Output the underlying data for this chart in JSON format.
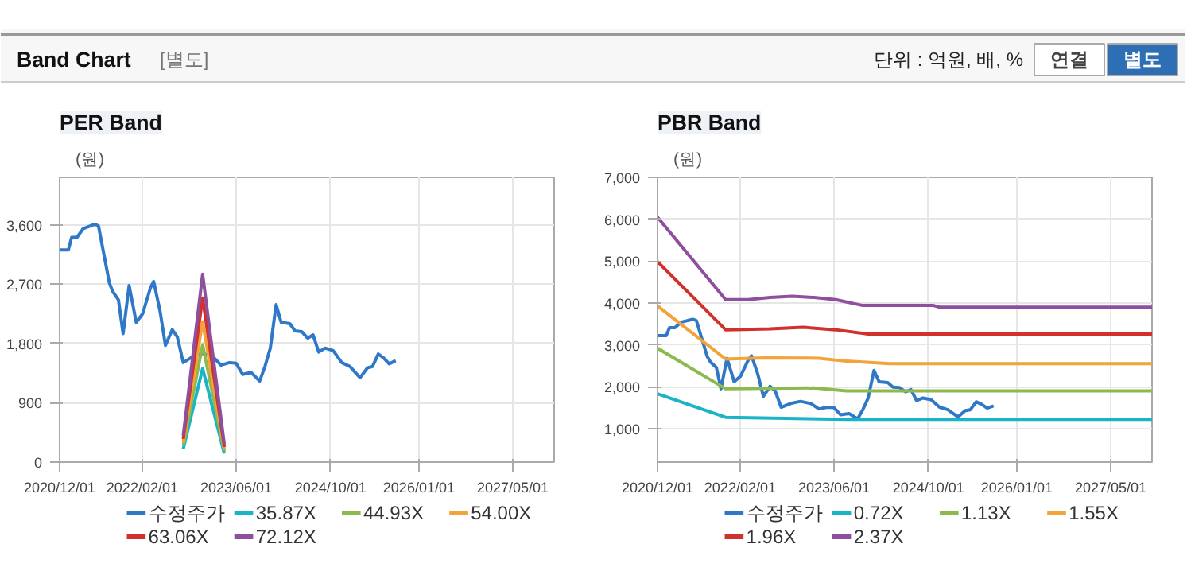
{
  "chart_data": [
    {
      "type": "other",
      "title": "Band Chart",
      "subtitle": "[별도]",
      "annotations": [
        "단위 : 억원, 배, %",
        "연결",
        "별도"
      ]
    },
    {
      "type": "line",
      "title": "PER Band",
      "ylabel": "(원)",
      "legend": "bottom",
      "grid": true,
      "x": [
        "2020-12-01",
        "2021-01-15",
        "2021-02-01",
        "2021-03-01",
        "2021-04-01",
        "2021-06-01",
        "2021-06-20",
        "2021-07-01",
        "2021-08-15",
        "2021-09-01",
        "2021-10-01",
        "2021-10-25",
        "2021-11-25",
        "2022-01-01",
        "2022-02-03",
        "2022-03-15",
        "2022-04-01",
        "2022-05-04",
        "2022-06-01",
        "2022-07-06",
        "2022-08-01",
        "2022-09-01",
        "2022-10-20",
        "2022-12-10",
        "2023-02-01",
        "2023-03-15",
        "2023-04-28",
        "2023-06-01",
        "2023-07-05",
        "2023-08-18",
        "2023-10-01",
        "2023-10-28",
        "2023-11-25",
        "2023-12-25",
        "2024-01-20",
        "2024-03-05",
        "2024-04-01",
        "2024-05-05",
        "2024-06-05",
        "2024-07-03",
        "2024-08-01",
        "2024-09-03",
        "2024-10-15",
        "2024-11-28",
        "2025-01-10",
        "2025-01-28",
        "2025-03-03",
        "2025-04-10",
        "2025-05-06",
        "2025-06-05",
        "2025-07-03",
        "2025-08-01",
        "2025-09-03"
      ],
      "xlim": [
        "2020-12-01",
        "2027-12-01"
      ],
      "xticks": [
        {
          "value": "2020-12-01",
          "label": "2020/12/01"
        },
        {
          "value": "2022-02-01",
          "label": "2022/02/01"
        },
        {
          "value": "2023-06-01",
          "label": "2023/06/01"
        },
        {
          "value": "2024-10-01",
          "label": "2024/10/01"
        },
        {
          "value": "2026-01-01",
          "label": "2026/01/01"
        },
        {
          "value": "2027-05-01",
          "label": "2027/05/01"
        }
      ],
      "ylim": [
        0,
        4320
      ],
      "yticks": [
        {
          "value": 0,
          "label": "0"
        },
        {
          "value": 900,
          "label": "900"
        },
        {
          "value": 1800,
          "label": "1,800"
        },
        {
          "value": 2700,
          "label": "2,700"
        },
        {
          "value": 3600,
          "label": "3,600"
        }
      ],
      "series": [
        {
          "name": "수정주가",
          "color": "#2f78c8",
          "values": [
            3220,
            3220,
            3410,
            3410,
            3540,
            3610,
            3580,
            3410,
            2720,
            2590,
            2460,
            1950,
            2680,
            2120,
            2250,
            2640,
            2740,
            2290,
            1770,
            2010,
            1900,
            1510,
            1600,
            1650,
            1600,
            1470,
            1510,
            1500,
            1330,
            1360,
            1230,
            1450,
            1730,
            2390,
            2120,
            2100,
            1990,
            1980,
            1880,
            1930,
            1670,
            1730,
            1690,
            1510,
            1450,
            1390,
            1280,
            1430,
            1450,
            1640,
            1580,
            1490,
            1540
          ]
        },
        {
          "name": "35.87X",
          "color": "#1ab3c7",
          "x": [
            "2022-09-01",
            "2022-12-10",
            "2023-04-01"
          ],
          "values": [
            200,
            1420,
            130
          ]
        },
        {
          "name": "44.93X",
          "color": "#8cba4e",
          "x": [
            "2022-09-01",
            "2022-12-10",
            "2023-04-01"
          ],
          "values": [
            250,
            1780,
            170
          ]
        },
        {
          "name": "54.00X",
          "color": "#f2a33a",
          "x": [
            "2022-09-01",
            "2022-12-10",
            "2023-04-01"
          ],
          "values": [
            300,
            2130,
            200
          ]
        },
        {
          "name": "63.06X",
          "color": "#d0312d",
          "x": [
            "2022-09-01",
            "2022-12-10",
            "2023-04-01"
          ],
          "values": [
            350,
            2490,
            230
          ]
        },
        {
          "name": "72.12X",
          "color": "#8e4f9e",
          "x": [
            "2022-09-01",
            "2022-12-10",
            "2023-04-01"
          ],
          "values": [
            400,
            2850,
            270
          ]
        }
      ]
    },
    {
      "type": "line",
      "title": "PBR Band",
      "ylabel": "(원)",
      "legend": "bottom",
      "grid": true,
      "x": [
        "2020-12-01",
        "2021-01-15",
        "2021-02-01",
        "2021-03-01",
        "2021-04-01",
        "2021-06-01",
        "2021-06-20",
        "2021-07-01",
        "2021-08-15",
        "2021-09-01",
        "2021-10-01",
        "2021-10-25",
        "2021-11-25",
        "2022-01-01",
        "2022-02-03",
        "2022-03-15",
        "2022-04-01",
        "2022-05-04",
        "2022-06-01",
        "2022-07-06",
        "2022-08-01",
        "2022-09-01",
        "2022-10-20",
        "2022-12-10",
        "2023-02-01",
        "2023-03-15",
        "2023-04-28",
        "2023-06-01",
        "2023-07-05",
        "2023-08-18",
        "2023-10-01",
        "2023-10-28",
        "2023-11-25",
        "2023-12-25",
        "2024-01-20",
        "2024-03-05",
        "2024-04-01",
        "2024-05-05",
        "2024-06-05",
        "2024-07-03",
        "2024-08-01",
        "2024-09-03",
        "2024-10-15",
        "2024-11-28",
        "2025-01-10",
        "2025-01-28",
        "2025-03-03",
        "2025-04-10",
        "2025-05-06",
        "2025-06-05",
        "2025-07-03",
        "2025-08-01",
        "2025-09-03"
      ],
      "xlim": [
        "2020-12-01",
        "2027-12-01"
      ],
      "xticks": [
        {
          "value": "2020-12-01",
          "label": "2020/12/01"
        },
        {
          "value": "2022-02-01",
          "label": "2022/02/01"
        },
        {
          "value": "2023-06-01",
          "label": "2023/06/01"
        },
        {
          "value": "2024-10-01",
          "label": "2024/10/01"
        },
        {
          "value": "2026-01-01",
          "label": "2026/01/01"
        },
        {
          "value": "2027-05-01",
          "label": "2027/05/01"
        }
      ],
      "ylim": [
        200,
        7000
      ],
      "yticks": [
        {
          "value": 1000,
          "label": "1,000"
        },
        {
          "value": 2000,
          "label": "2,000"
        },
        {
          "value": 3000,
          "label": "3,000"
        },
        {
          "value": 4000,
          "label": "4,000"
        },
        {
          "value": 5000,
          "label": "5,000"
        },
        {
          "value": 6000,
          "label": "6,000"
        },
        {
          "value": 7000,
          "label": "7,000"
        }
      ],
      "series": [
        {
          "name": "수정주가",
          "color": "#2f78c8",
          "values": [
            3220,
            3220,
            3410,
            3410,
            3540,
            3610,
            3580,
            3410,
            2720,
            2590,
            2460,
            1950,
            2680,
            2120,
            2250,
            2640,
            2740,
            2290,
            1770,
            2010,
            1900,
            1510,
            1600,
            1650,
            1600,
            1470,
            1510,
            1500,
            1330,
            1360,
            1230,
            1450,
            1730,
            2390,
            2120,
            2100,
            1990,
            1980,
            1880,
            1930,
            1670,
            1730,
            1690,
            1510,
            1450,
            1390,
            1280,
            1430,
            1450,
            1640,
            1580,
            1490,
            1540
          ]
        },
        {
          "name": "0.72X",
          "color": "#1ab3c7",
          "x": [
            "2020-12-01",
            "2021-11-18",
            "2023-08-04",
            "2027-12-01"
          ],
          "values": [
            1830,
            1270,
            1220,
            1220
          ]
        },
        {
          "name": "1.13X",
          "color": "#8cba4e",
          "x": [
            "2020-12-01",
            "2021-11-18",
            "2023-02-18",
            "2023-08-04",
            "2027-12-01"
          ],
          "values": [
            2920,
            1950,
            1970,
            1900,
            1900
          ]
        },
        {
          "name": "1.55X",
          "color": "#f2a33a",
          "x": [
            "2020-12-01",
            "2021-11-18",
            "2022-06-07",
            "2023-03-15",
            "2023-08-04",
            "2024-03-15",
            "2027-12-01"
          ],
          "values": [
            3930,
            2660,
            2690,
            2680,
            2610,
            2550,
            2550
          ]
        },
        {
          "name": "1.96X",
          "color": "#d0312d",
          "x": [
            "2020-12-01",
            "2021-11-18",
            "2022-07-06",
            "2022-12-22",
            "2023-06-10",
            "2023-11-25",
            "2027-12-01"
          ],
          "values": [
            4990,
            3360,
            3380,
            3420,
            3360,
            3260,
            3260
          ]
        },
        {
          "name": "2.37X",
          "color": "#8e4f9e",
          "x": [
            "2020-12-01",
            "2021-11-18",
            "2022-03-15",
            "2022-07-06",
            "2022-10-28",
            "2023-02-18",
            "2023-06-10",
            "2023-10-28",
            "2024-10-28",
            "2024-11-28",
            "2027-12-01"
          ],
          "values": [
            6050,
            4080,
            4080,
            4130,
            4160,
            4130,
            4080,
            3940,
            3940,
            3900,
            3900
          ]
        }
      ]
    }
  ]
}
